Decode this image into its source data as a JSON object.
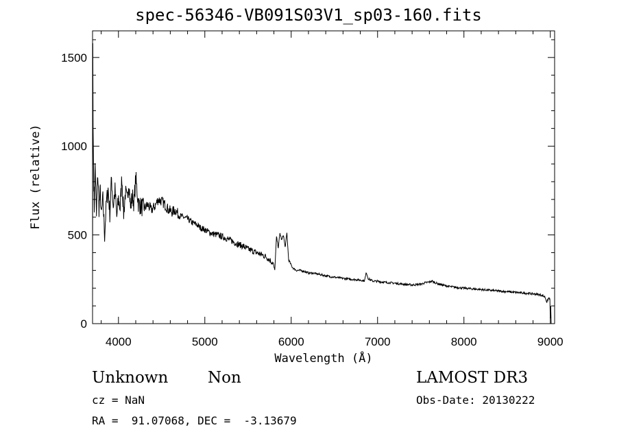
{
  "chart_data": {
    "type": "line",
    "title": "spec-56346-VB091S03V1_sp03-160.fits",
    "xlabel": "Wavelength (Å)",
    "ylabel": "Flux (relative)",
    "xlim": [
      3700,
      9050
    ],
    "ylim": [
      0,
      1650
    ],
    "x_ticks": [
      4000,
      5000,
      6000,
      7000,
      8000,
      9000
    ],
    "y_ticks": [
      0,
      500,
      1000,
      1500
    ],
    "x_tick_labels": [
      "4000",
      "5000",
      "6000",
      "7000",
      "8000",
      "9000"
    ],
    "y_tick_labels": [
      "0",
      "500",
      "1000",
      "1500"
    ],
    "grid": false,
    "series": [
      {
        "name": "flux",
        "color": "#000000",
        "x": [
          3700,
          3703,
          3706,
          3710,
          3714,
          3720,
          3730,
          3745,
          3760,
          3775,
          3790,
          3800,
          3820,
          3840,
          3860,
          3880,
          3900,
          3920,
          3940,
          3960,
          3980,
          4000,
          4020,
          4040,
          4060,
          4080,
          4100,
          4120,
          4140,
          4160,
          4180,
          4200,
          4230,
          4260,
          4300,
          4340,
          4380,
          4420,
          4460,
          4500,
          4540,
          4580,
          4620,
          4660,
          4700,
          4750,
          4800,
          4850,
          4900,
          4950,
          5000,
          5050,
          5100,
          5150,
          5200,
          5250,
          5300,
          5350,
          5400,
          5450,
          5500,
          5550,
          5600,
          5650,
          5700,
          5750,
          5790,
          5810,
          5830,
          5850,
          5870,
          5890,
          5910,
          5930,
          5950,
          5970,
          5990,
          6010,
          6030,
          6060,
          6100,
          6150,
          6200,
          6250,
          6300,
          6350,
          6400,
          6450,
          6500,
          6550,
          6600,
          6650,
          6700,
          6750,
          6800,
          6850,
          6870,
          6890,
          6920,
          6950,
          7000,
          7050,
          7100,
          7150,
          7200,
          7250,
          7300,
          7350,
          7400,
          7450,
          7500,
          7550,
          7600,
          7630,
          7660,
          7700,
          7750,
          7800,
          7850,
          7900,
          7950,
          8000,
          8050,
          8100,
          8150,
          8200,
          8250,
          8300,
          8350,
          8400,
          8450,
          8500,
          8550,
          8600,
          8650,
          8700,
          8750,
          8800,
          8850,
          8900,
          8940,
          8960,
          8975,
          8985,
          8995,
          9000,
          9005,
          9010
        ],
        "y": [
          150,
          1580,
          1100,
          950,
          800,
          650,
          900,
          600,
          850,
          650,
          750,
          600,
          700,
          500,
          680,
          760,
          620,
          820,
          660,
          750,
          600,
          700,
          650,
          830,
          620,
          740,
          690,
          810,
          650,
          720,
          680,
          820,
          680,
          660,
          650,
          670,
          640,
          660,
          700,
          690,
          670,
          640,
          630,
          640,
          610,
          600,
          590,
          570,
          560,
          540,
          530,
          515,
          505,
          500,
          490,
          480,
          470,
          455,
          445,
          435,
          420,
          410,
          400,
          390,
          380,
          360,
          340,
          300,
          490,
          430,
          510,
          470,
          500,
          430,
          510,
          360,
          340,
          320,
          310,
          300,
          300,
          295,
          285,
          285,
          280,
          275,
          270,
          265,
          262,
          258,
          255,
          252,
          250,
          248,
          245,
          242,
          290,
          255,
          245,
          240,
          238,
          235,
          232,
          230,
          228,
          225,
          222,
          220,
          218,
          220,
          222,
          230,
          235,
          240,
          232,
          225,
          218,
          212,
          208,
          205,
          202,
          200,
          198,
          196,
          194,
          192,
          190,
          188,
          186,
          184,
          182,
          180,
          178,
          176,
          174,
          172,
          170,
          168,
          165,
          160,
          150,
          120,
          140,
          145,
          140,
          30,
          100,
          0
        ]
      }
    ]
  },
  "info": {
    "object_class": "Unknown",
    "object_subclass": "Non",
    "survey": "LAMOST DR3",
    "cz": "cz = NaN",
    "obs_date": "Obs-Date: 20130222",
    "radec": "RA =  91.07068, DEC =  -3.13679"
  }
}
